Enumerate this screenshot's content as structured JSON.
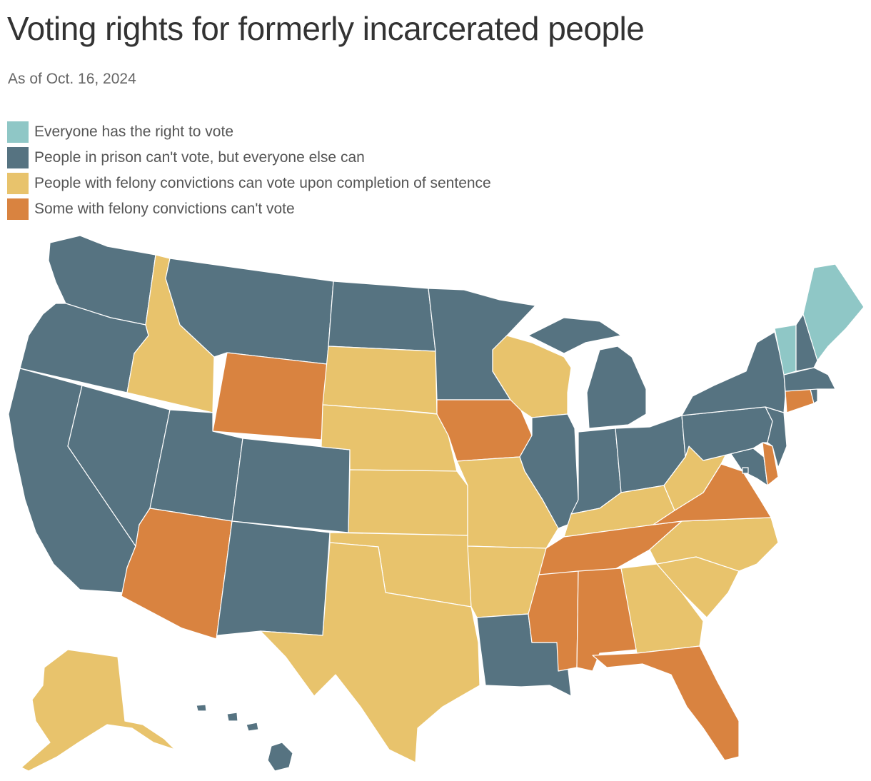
{
  "title": "Voting rights for formerly incarcerated people",
  "subtitle": "As of Oct. 16, 2024",
  "colors": {
    "everyone": "#8fc7c6",
    "prison_only": "#567381",
    "after_sentence": "#e8c36c",
    "some_cannot": "#d98340"
  },
  "legend": [
    {
      "key": "everyone",
      "label": "Everyone has the right to vote"
    },
    {
      "key": "prison_only",
      "label": "People in prison can't vote, but everyone else can"
    },
    {
      "key": "after_sentence",
      "label": "People with felony convictions can vote upon completion of sentence"
    },
    {
      "key": "some_cannot",
      "label": "Some with felony convictions can't vote"
    }
  ],
  "states": {
    "WA": "prison_only",
    "OR": "prison_only",
    "CA": "prison_only",
    "NV": "prison_only",
    "ID": "after_sentence",
    "MT": "prison_only",
    "WY": "some_cannot",
    "UT": "prison_only",
    "CO": "prison_only",
    "AZ": "some_cannot",
    "NM": "prison_only",
    "ND": "prison_only",
    "SD": "after_sentence",
    "NE": "after_sentence",
    "KS": "after_sentence",
    "OK": "after_sentence",
    "TX": "after_sentence",
    "MN": "prison_only",
    "IA": "some_cannot",
    "MO": "after_sentence",
    "AR": "after_sentence",
    "LA": "prison_only",
    "WI": "after_sentence",
    "IL": "prison_only",
    "MI": "prison_only",
    "IN": "prison_only",
    "OH": "prison_only",
    "KY": "after_sentence",
    "TN": "some_cannot",
    "MS": "some_cannot",
    "AL": "some_cannot",
    "GA": "after_sentence",
    "FL": "some_cannot",
    "SC": "after_sentence",
    "NC": "after_sentence",
    "VA": "some_cannot",
    "WV": "after_sentence",
    "MD": "prison_only",
    "DE": "some_cannot",
    "PA": "prison_only",
    "NJ": "prison_only",
    "NY": "prison_only",
    "CT": "some_cannot",
    "RI": "prison_only",
    "MA": "prison_only",
    "VT": "everyone",
    "NH": "prison_only",
    "ME": "everyone",
    "AK": "after_sentence",
    "HI": "prison_only",
    "DC": "prison_only"
  }
}
